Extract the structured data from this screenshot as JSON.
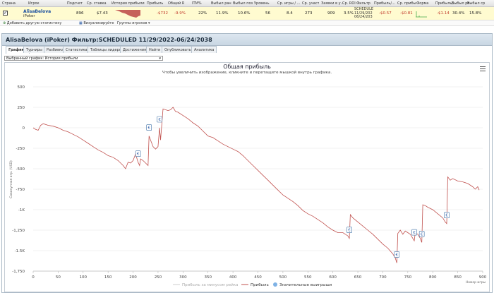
{
  "table": {
    "headers": [
      "Страна",
      "Игрок",
      "Подсчет",
      "Ср. ставка",
      "История прибыли",
      "Прибыль",
      "Общий R",
      "ITM%",
      "Выбыл ран",
      "Выбыл поз",
      "Уровень",
      "Ср. игры / ...",
      "Ср. участ",
      "Заявки в у...",
      "Ср. ROI",
      "Фильтр",
      "Прибыль/...",
      "Ср. прибы",
      "Форма",
      "Прибыль/...",
      "Выбыл ра",
      "Выбыл ср"
    ],
    "row": {
      "player": "AlisaBelova",
      "site": "iPoker",
      "count": "896",
      "avg_stake": "$7.43",
      "profit": "-$732",
      "total_r": "-9.9%",
      "itm": "22%",
      "early_out": "11.9%",
      "late_out": "10.6%",
      "level": "56",
      "avg_games": "8.4",
      "avg_entrants": "273",
      "entries": "909",
      "avg_roi": "3.5%",
      "filter_lines": [
        "SCHEDULE",
        "11/29/202",
        "06/24/203"
      ],
      "profit_per": "-$0.57",
      "avg_profit": "-$0.81",
      "profit_per2": "-$1.14",
      "out_late2": "30.4%",
      "out_avg2": "15.8%"
    }
  },
  "toolbar": {
    "add_stats": "Добавить другую статистику",
    "visualize": "Визуализируйте",
    "player_groups": "Группы игроков"
  },
  "panel": {
    "title": "AlisaBelova (iPoker) Фильтр:SCHEDULED 11/29/2022-06/24/2038",
    "tabs": [
      "Графики",
      "Турниры",
      "Разбивка",
      "Статистика",
      "Таблицы лидеров",
      "Достижения",
      "Найти",
      "Опубликовать",
      "Аналитика"
    ],
    "selector_label": "Выбранный график:",
    "selector_value": "История прибыли"
  },
  "chart_data": {
    "type": "line",
    "title": "Общая прибыль",
    "subtitle": "Чтобы увеличить изображение, кликните и перетащите мышкой внутрь графика.",
    "ylabel": "Совокупная игр. (USD)",
    "xlabel": "Номер игры",
    "xlim": [
      0,
      900
    ],
    "ylim": [
      -1750,
      500
    ],
    "x_ticks": [
      "0",
      "50",
      "100",
      "150",
      "200",
      "250",
      "300",
      "350",
      "400",
      "450",
      "500",
      "550",
      "600",
      "650",
      "700",
      "750",
      "800",
      "850",
      "900"
    ],
    "y_ticks": [
      "500",
      "250",
      "0",
      "-250",
      "-500",
      "-750",
      "-1K",
      "-1,250",
      "-1.5K",
      "-1,750"
    ],
    "legend_position": "bottom",
    "series": [
      {
        "name": "Прибыль",
        "color": "#c0504d",
        "x": [
          0,
          5,
          10,
          15,
          20,
          30,
          40,
          50,
          60,
          70,
          80,
          90,
          100,
          110,
          120,
          130,
          140,
          150,
          160,
          170,
          180,
          185,
          190,
          195,
          200,
          205,
          210,
          213,
          215,
          220,
          225,
          230,
          232,
          235,
          240,
          245,
          250,
          253,
          255,
          260,
          270,
          275,
          280,
          285,
          290,
          300,
          310,
          320,
          330,
          340,
          350,
          360,
          370,
          380,
          390,
          400,
          410,
          420,
          430,
          440,
          450,
          460,
          470,
          480,
          490,
          500,
          510,
          520,
          530,
          540,
          550,
          560,
          570,
          580,
          590,
          600,
          610,
          620,
          630,
          633,
          635,
          640,
          650,
          660,
          670,
          680,
          690,
          700,
          710,
          720,
          725,
          728,
          730,
          735,
          740,
          745,
          750,
          755,
          760,
          763,
          765,
          770,
          775,
          778,
          780,
          785,
          790,
          800,
          810,
          820,
          825,
          828,
          830,
          835,
          840,
          850,
          860,
          870,
          880,
          885,
          890,
          893
        ],
        "y": [
          0,
          -20,
          -30,
          30,
          50,
          30,
          20,
          0,
          -30,
          -50,
          -80,
          -110,
          -150,
          -190,
          -230,
          -270,
          -300,
          -340,
          -360,
          -400,
          -460,
          -500,
          -420,
          -430,
          -400,
          -320,
          -420,
          -460,
          -380,
          -400,
          -430,
          -460,
          -100,
          -150,
          -230,
          -260,
          -230,
          0,
          -150,
          230,
          210,
          220,
          250,
          200,
          190,
          150,
          110,
          60,
          20,
          -40,
          -100,
          -120,
          -160,
          -200,
          -230,
          -260,
          -290,
          -340,
          -400,
          -460,
          -520,
          -580,
          -640,
          -700,
          -760,
          -820,
          -860,
          -900,
          -950,
          -1010,
          -1050,
          -1080,
          -1120,
          -1160,
          -1210,
          -1250,
          -1280,
          -1280,
          -1320,
          -1350,
          -1060,
          -1100,
          -1150,
          -1200,
          -1250,
          -1300,
          -1360,
          -1420,
          -1470,
          -1540,
          -1590,
          -1650,
          -1290,
          -1250,
          -1300,
          -1260,
          -1280,
          -1300,
          -1350,
          -1380,
          -1280,
          -1300,
          -1350,
          -1400,
          -940,
          -950,
          -970,
          -1000,
          -1050,
          -1100,
          -1150,
          -1170,
          -600,
          -640,
          -620,
          -650,
          -660,
          -680,
          -720,
          -750,
          -720,
          -760
        ]
      }
    ],
    "legend": [
      "Прибыль за минусом рейка",
      "Прибыль",
      "Значительные выигрыши"
    ],
    "markers_x": [
      210,
      232,
      253,
      633,
      728,
      763,
      778,
      828
    ]
  }
}
